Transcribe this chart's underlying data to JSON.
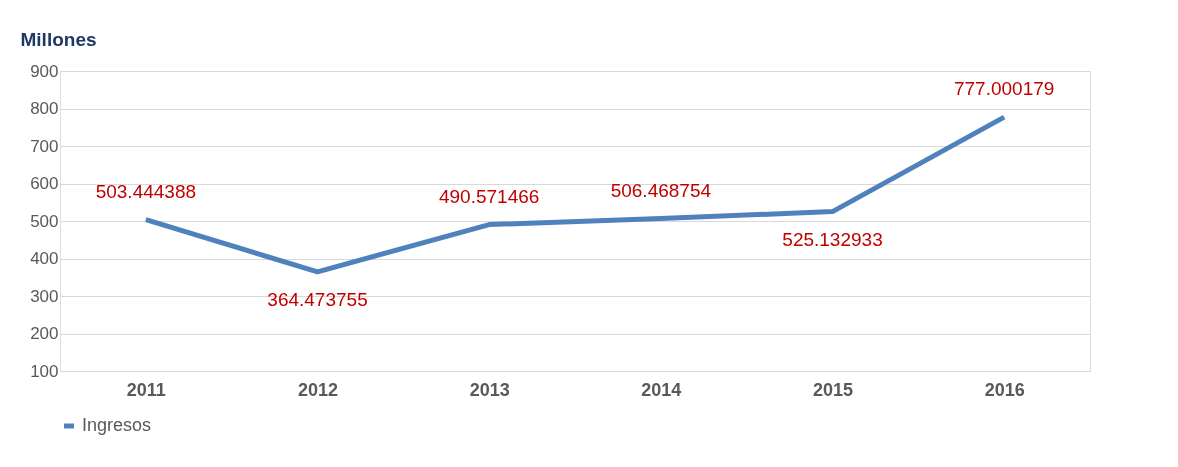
{
  "chart_data": {
    "type": "line",
    "ylabel": "Millones",
    "categories": [
      "2011",
      "2012",
      "2013",
      "2014",
      "2015",
      "2016"
    ],
    "series": [
      {
        "name": "Ingresos",
        "color": "#4f81bd",
        "values": [
          503.444388,
          364.473755,
          490.571466,
          506.468754,
          525.132933,
          777.000179
        ]
      }
    ],
    "ylim": [
      100,
      900
    ],
    "yticks": [
      100,
      200,
      300,
      400,
      500,
      600,
      700,
      800,
      900
    ],
    "grid": "y",
    "legend": "bottom",
    "data_labels": true,
    "marker": "none",
    "line_style": "solid"
  }
}
